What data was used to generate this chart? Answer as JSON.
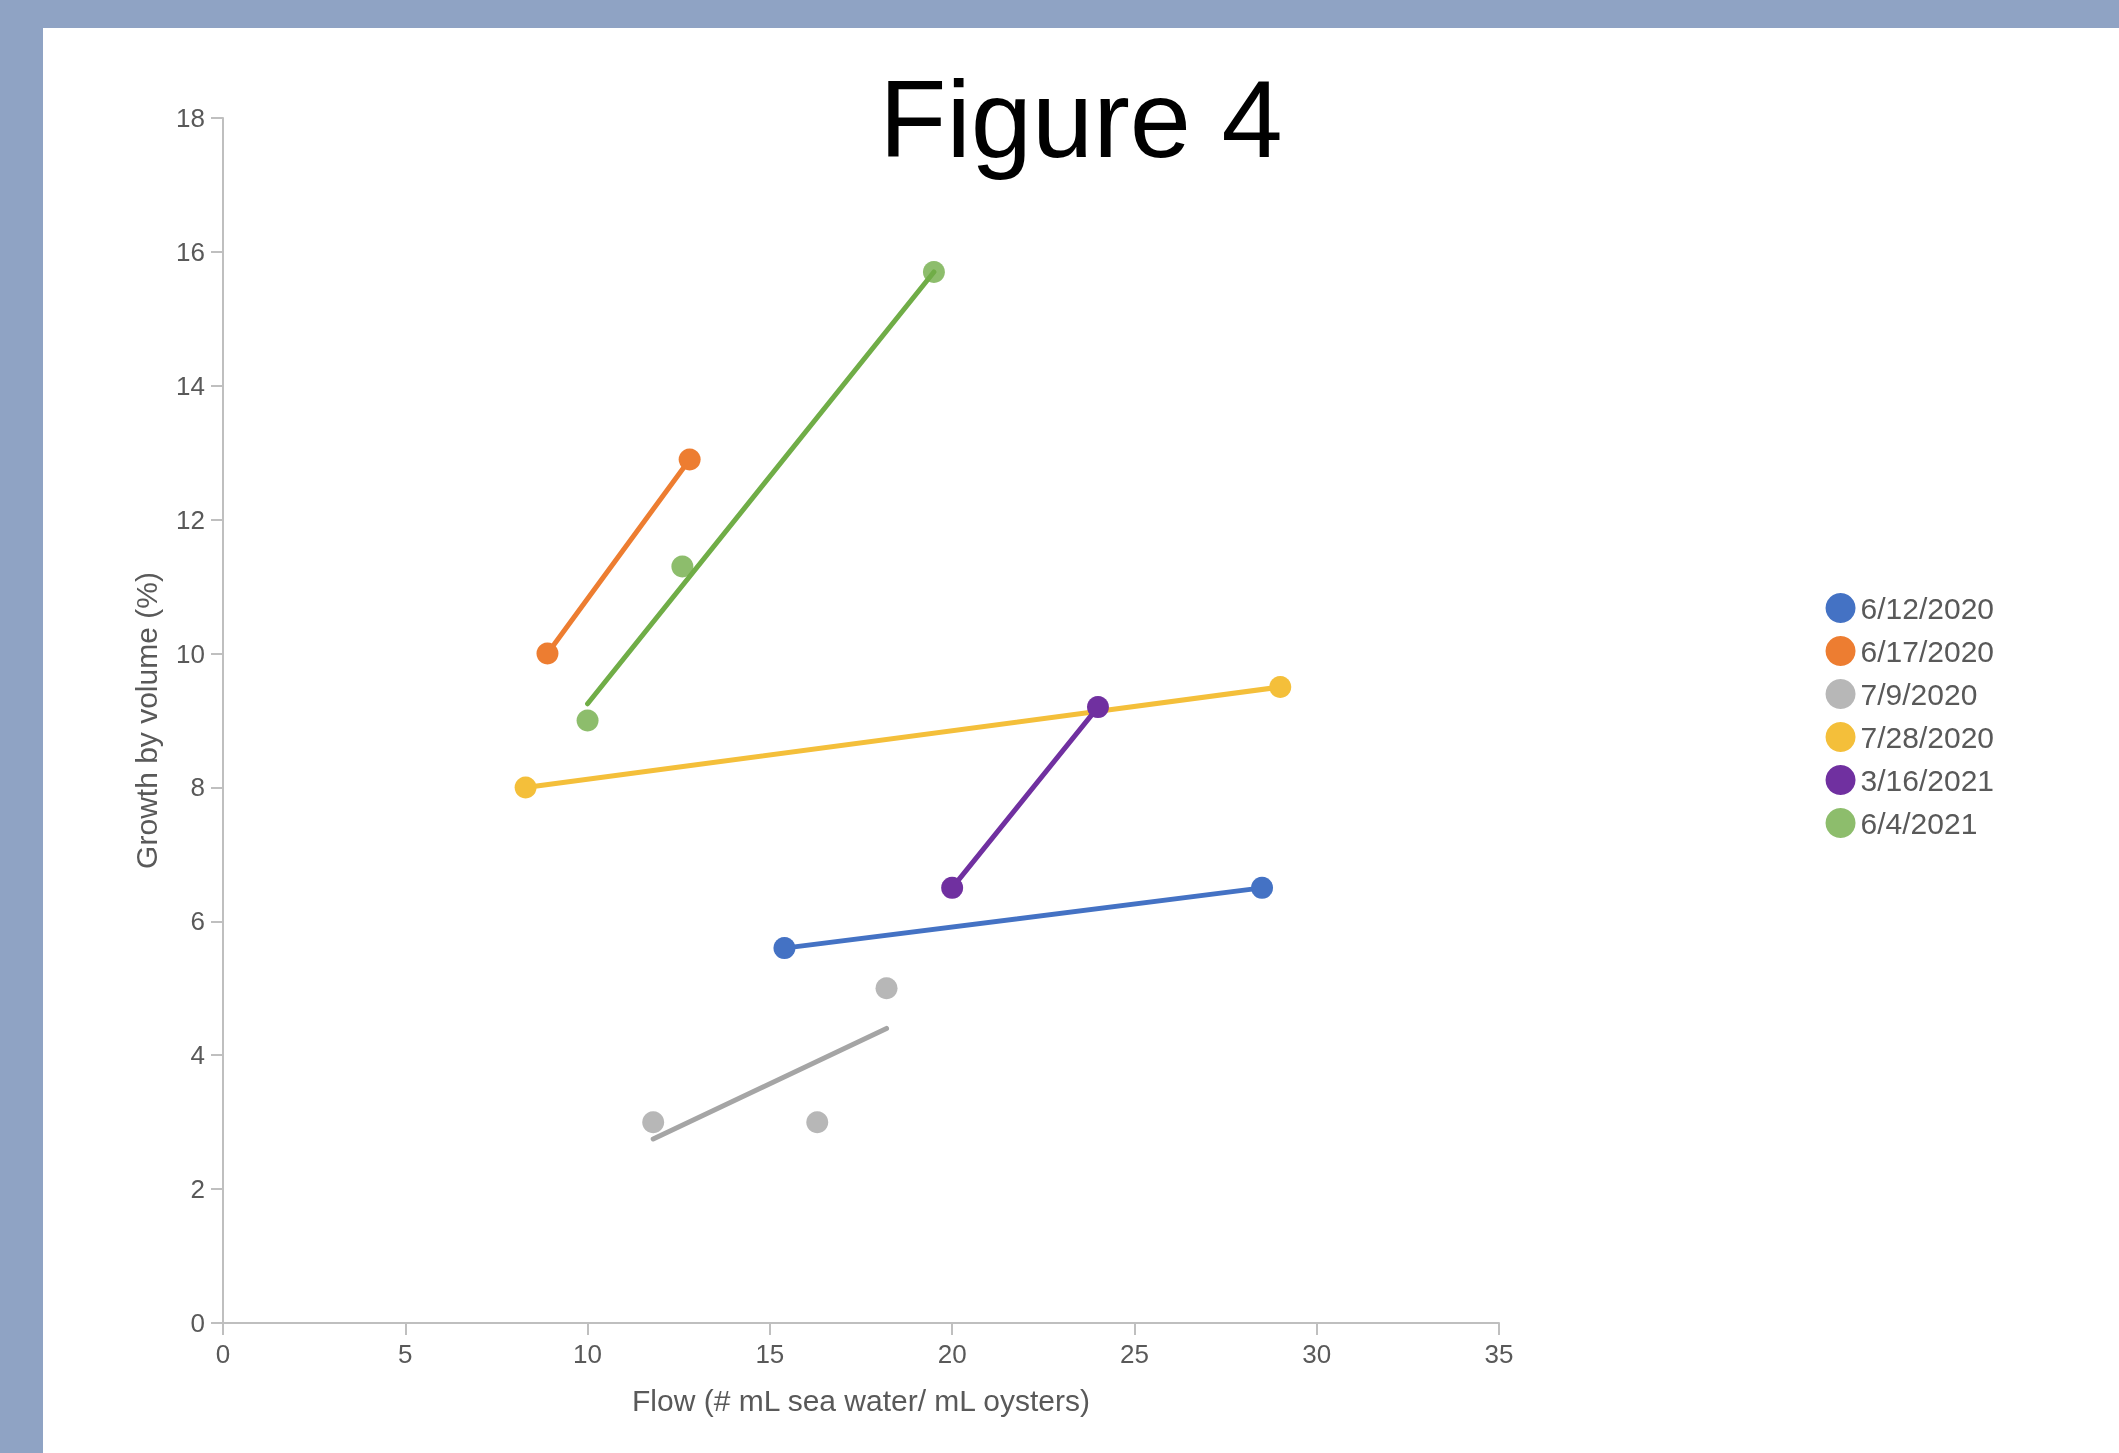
{
  "chart_data": {
    "type": "scatter",
    "title": "Figure 4",
    "xlabel": "Flow (# mL sea water/ mL oysters)",
    "ylabel": "Growth by volume (%)",
    "xlim": [
      0,
      35
    ],
    "xticks": [
      0,
      5,
      10,
      15,
      20,
      25,
      30,
      35
    ],
    "ylim": [
      0,
      18
    ],
    "yticks": [
      0,
      2,
      4,
      6,
      8,
      10,
      12,
      14,
      16,
      18
    ],
    "grid": false,
    "legend": "right",
    "marker": "circle",
    "series": [
      {
        "name": "6/12/2020",
        "type": "line",
        "color": "#4472c4",
        "x": [
          15.4,
          28.5
        ],
        "values": [
          5.6,
          6.5
        ]
      },
      {
        "name": "6/17/2020",
        "type": "line",
        "color": "#ed7d31",
        "x": [
          8.9,
          12.8
        ],
        "values": [
          10.0,
          12.9
        ]
      },
      {
        "name": "7/9/2020",
        "color": "#a5a5a5",
        "x": [
          11.8,
          16.3,
          18.2
        ],
        "values": [
          3.0,
          3.0,
          5.0
        ]
      },
      {
        "name": "7/28/2020",
        "type": "line",
        "color": "#f4bf3a",
        "x": [
          8.3,
          29.0
        ],
        "values": [
          8.0,
          9.5
        ]
      },
      {
        "name": "3/16/2021",
        "type": "line",
        "color": "#7030a0",
        "x": [
          20.0,
          24.0
        ],
        "values": [
          6.5,
          9.2
        ]
      },
      {
        "name": "6/4/2021",
        "color": "#70ad47",
        "x": [
          10.0,
          12.6,
          19.5
        ],
        "values": [
          9.0,
          11.3,
          15.7
        ]
      },
      {
        "type": "line",
        "marker": "none",
        "color": "#a5a5a5",
        "x": [
          11.8,
          18.2
        ],
        "values": [
          2.75,
          4.4
        ]
      },
      {
        "type": "line",
        "marker": "none",
        "color": "#70ad47",
        "x": [
          10.0,
          19.5
        ],
        "values": [
          9.25,
          15.7
        ]
      }
    ]
  }
}
